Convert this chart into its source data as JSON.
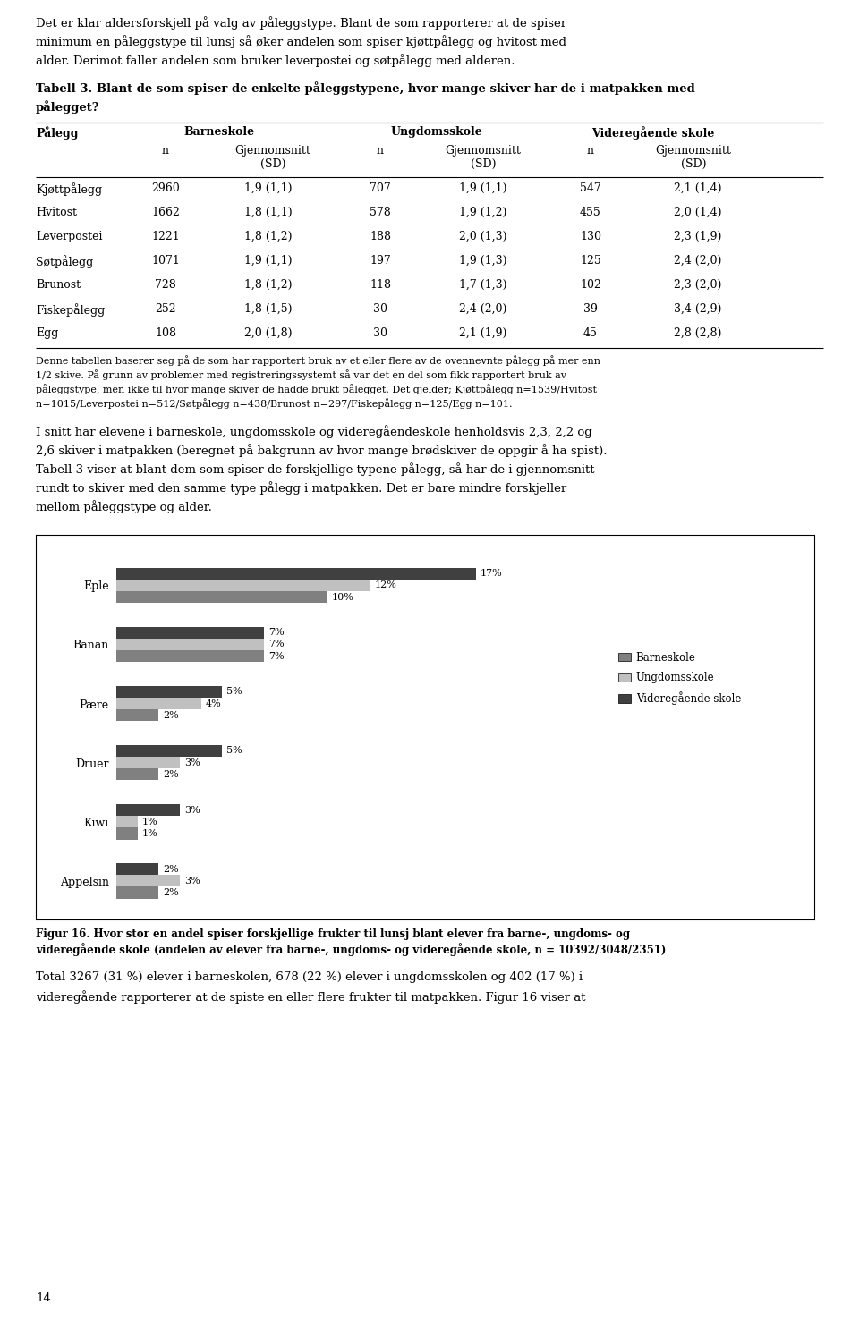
{
  "page_title_text": [
    "Det er klar aldersforskjell på valg av påleggstype. Blant de som rapporterer at de spiser",
    "minimum en påleggstype til lunsj så øker andelen som spiser kjøttpålegg og hvitost med",
    "alder. Derimot faller andelen som bruker leverpostei og søtpålegg med alderen."
  ],
  "table_title_bold": "Tabell 3. Blant de som spiser de enkelte påleggstypene, hvor mange skiver har de i matpakken med",
  "table_title_bold2": "pålegget?",
  "table_rows": [
    [
      "Kjøttpålegg",
      "2960",
      "1,9 (1,1)",
      "707",
      "1,9 (1,1)",
      "547",
      "2,1 (1,4)"
    ],
    [
      "Hvitost",
      "1662",
      "1,8 (1,1)",
      "578",
      "1,9 (1,2)",
      "455",
      "2,0 (1,4)"
    ],
    [
      "Leverpostei",
      "1221",
      "1,8 (1,2)",
      "188",
      "2,0 (1,3)",
      "130",
      "2,3 (1,9)"
    ],
    [
      "Søtpålegg",
      "1071",
      "1,9 (1,1)",
      "197",
      "1,9 (1,3)",
      "125",
      "2,4 (2,0)"
    ],
    [
      "Brunost",
      "728",
      "1,8 (1,2)",
      "118",
      "1,7 (1,3)",
      "102",
      "2,3 (2,0)"
    ],
    [
      "Fiskepålegg",
      "252",
      "1,8 (1,5)",
      "30",
      "2,4 (2,0)",
      "39",
      "3,4 (2,9)"
    ],
    [
      "Egg",
      "108",
      "2,0 (1,8)",
      "30",
      "2,1 (1,9)",
      "45",
      "2,8 (2,8)"
    ]
  ],
  "table_note_lines": [
    "Denne tabellen baserer seg på de som har rapportert bruk av et eller flere av de ovennevnte pålegg på mer enn",
    "1/2 skive. På grunn av problemer med registreringssystemt så var det en del som fikk rapportert bruk av",
    "påleggstype, men ikke til hvor mange skiver de hadde brukt pålegget. Det gjelder; Kjøttpålegg n=1539/Hvitost",
    "n=1015/Leverpostei n=512/Søtpålegg n=438/Brunost n=297/Fiskepålegg n=125/Egg n=101."
  ],
  "body_text_1_lines": [
    "I snitt har elevene i barneskole, ungdomsskole og videregåendeskole henholdsvis 2,3, 2,2 og",
    "2,6 skiver i matpakken (beregnet på bakgrunn av hvor mange brødskiver de oppgir å ha spist).",
    "Tabell 3 viser at blant dem som spiser de forskjellige typene pålegg, så har de i gjennomsnitt",
    "rundt to skiver med den samme type pålegg i matpakken. Det er bare mindre forskjeller",
    "mellom påleggstype og alder."
  ],
  "chart_categories": [
    "Eple",
    "Banan",
    "Pære",
    "Druer",
    "Kiwi",
    "Appelsin"
  ],
  "chart_data_barneskole": [
    10,
    7,
    2,
    2,
    1,
    2
  ],
  "chart_data_ungdomsskole": [
    12,
    7,
    4,
    3,
    1,
    3
  ],
  "chart_data_videregaende": [
    17,
    7,
    5,
    5,
    3,
    2
  ],
  "color_barneskole": "#808080",
  "color_ungdomsskole": "#c0c0c0",
  "color_videregaende": "#404040",
  "legend_labels": [
    "Barneskole",
    "Ungdomsskole",
    "Videregående skole"
  ],
  "chart_figcaption_lines": [
    "Figur 16. Hvor stor en andel spiser forskjellige frukter til lunsj blant elever fra barne-, ungdoms- og",
    "videregående skole (andelen av elever fra barne-, ungdoms- og videregående skole, n = 10392/3048/2351)"
  ],
  "body_text_2_lines": [
    "Total 3267 (31 %) elever i barneskolen, 678 (22 %) elever i ungdomsskolen og 402 (17 %) i",
    "videregående rapporterer at de spiste en eller flere frukter til matpakken. Figur 16 viser at"
  ],
  "page_number": "14",
  "background_color": "#ffffff"
}
